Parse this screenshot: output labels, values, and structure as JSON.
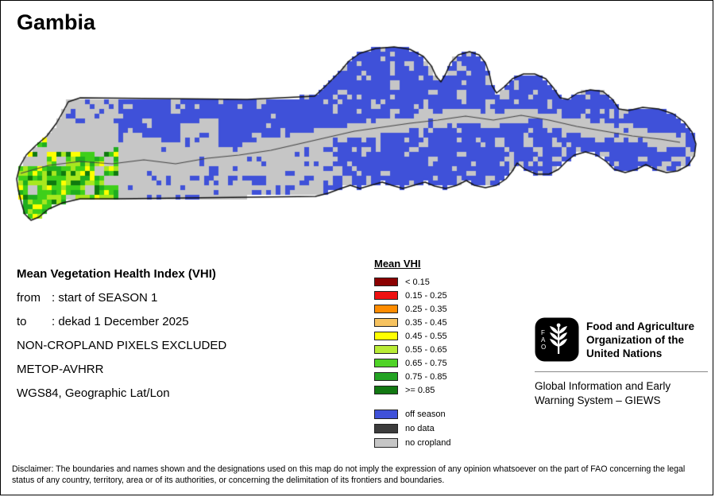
{
  "page": {
    "title": "Gambia"
  },
  "info": {
    "heading": "Mean Vegetation Health Index (VHI)",
    "rows": [
      {
        "label": "from",
        "value": ": start of SEASON 1"
      },
      {
        "label": "to",
        "value": ": dekad 1 December 2025"
      }
    ],
    "lines": [
      "NON-CROPLAND PIXELS EXCLUDED",
      "METOP-AVHRR",
      "WGS84, Geographic Lat/Lon"
    ]
  },
  "legend": {
    "title": "Mean VHI",
    "items": [
      {
        "label": "< 0.15",
        "color": "#8b0000"
      },
      {
        "label": "0.15 - 0.25",
        "color": "#ee1111"
      },
      {
        "label": "0.25 - 0.35",
        "color": "#ff8c00"
      },
      {
        "label": "0.35 - 0.45",
        "color": "#f6c25f"
      },
      {
        "label": "0.45 - 0.55",
        "color": "#ffff00"
      },
      {
        "label": "0.55 - 0.65",
        "color": "#b9ec36"
      },
      {
        "label": "0.65 - 0.75",
        "color": "#4fd327"
      },
      {
        "label": "0.75 - 0.85",
        "color": "#23a323"
      },
      {
        "label": ">= 0.85",
        "color": "#127812"
      }
    ],
    "extra_items": [
      {
        "label": "off season",
        "color": "#3f51d9"
      },
      {
        "label": "no data",
        "color": "#3c3c3c"
      },
      {
        "label": "no cropland",
        "color": "#c6c6c6"
      }
    ]
  },
  "map": {
    "region": "Gambia",
    "colors": {
      "off_season": "#3f51d9",
      "no_cropland": "#c6c6c6",
      "outline": "#111111",
      "river": "#444444",
      "greens": [
        "#ffff00",
        "#a8e81e",
        "#3ecf1a",
        "#1fae1f",
        "#0f7a0f"
      ]
    }
  },
  "fao": {
    "logo_text": "FAO",
    "org_name": "Food and Agriculture Organization of the United Nations",
    "giews": "Global Information and Early Warning System – GIEWS"
  },
  "disclaimer": "Disclaimer: The boundaries and names shown and the designations used on this map do not imply the expression of any opinion whatsoever on the part of FAO concerning the legal status of any country, territory, area or of its authorities, or concerning the delimitation of its frontiers and boundaries."
}
